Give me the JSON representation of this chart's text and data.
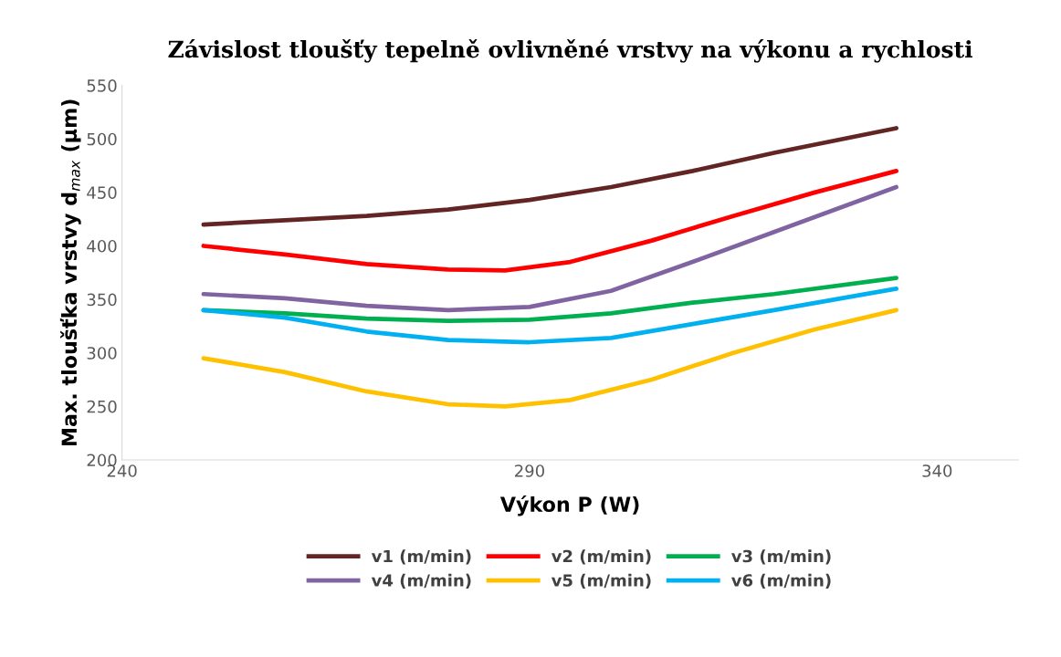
{
  "chart_data": {
    "type": "line",
    "title": "Závislost tloušťy tepelně ovlivněné vrstvy na výkonu a rychlosti",
    "xlabel": "Výkon P (W)",
    "ylabel": "Max. tloušťka vrstvy d$_{max}$ (μm)",
    "series": [
      {
        "name": "v1 (m/min)",
        "color": "#632523",
        "x": [
          250,
          260,
          270,
          280,
          290,
          300,
          310,
          320,
          335
        ],
        "values": [
          420,
          424,
          428,
          434,
          443,
          455,
          470,
          487,
          510
        ]
      },
      {
        "name": "v2 (m/min)",
        "color": "#ff0000",
        "x": [
          250,
          260,
          270,
          280,
          287,
          295,
          305,
          315,
          325,
          335
        ],
        "values": [
          400,
          392,
          383,
          378,
          377,
          385,
          405,
          428,
          450,
          470
        ]
      },
      {
        "name": "v3 (m/min)",
        "color": "#00b050",
        "x": [
          250,
          260,
          270,
          280,
          290,
          300,
          310,
          320,
          335
        ],
        "values": [
          340,
          337,
          332,
          330,
          331,
          337,
          347,
          355,
          370
        ]
      },
      {
        "name": "v4 (m/min)",
        "color": "#8064a2",
        "x": [
          250,
          260,
          270,
          280,
          290,
          300,
          310,
          320,
          335
        ],
        "values": [
          355,
          351,
          344,
          340,
          343,
          358,
          385,
          413,
          455
        ]
      },
      {
        "name": "v5 (m/min)",
        "color": "#ffc000",
        "x": [
          250,
          260,
          270,
          280,
          287,
          295,
          305,
          315,
          325,
          335
        ],
        "values": [
          295,
          282,
          264,
          252,
          250,
          256,
          275,
          300,
          322,
          340
        ]
      },
      {
        "name": "v6 (m/min)",
        "color": "#00b0f0",
        "x": [
          250,
          260,
          270,
          280,
          290,
          300,
          310,
          320,
          335
        ],
        "values": [
          340,
          333,
          320,
          312,
          310,
          314,
          327,
          340,
          360
        ]
      }
    ],
    "xlim": [
      240,
      350
    ],
    "xticks": [
      240,
      290,
      340
    ],
    "ylim": [
      200,
      550
    ],
    "yticks": [
      200,
      250,
      300,
      350,
      400,
      450,
      500,
      550
    ],
    "grid": false,
    "legend": "bottom",
    "marker": "none",
    "line_style": "solid"
  }
}
